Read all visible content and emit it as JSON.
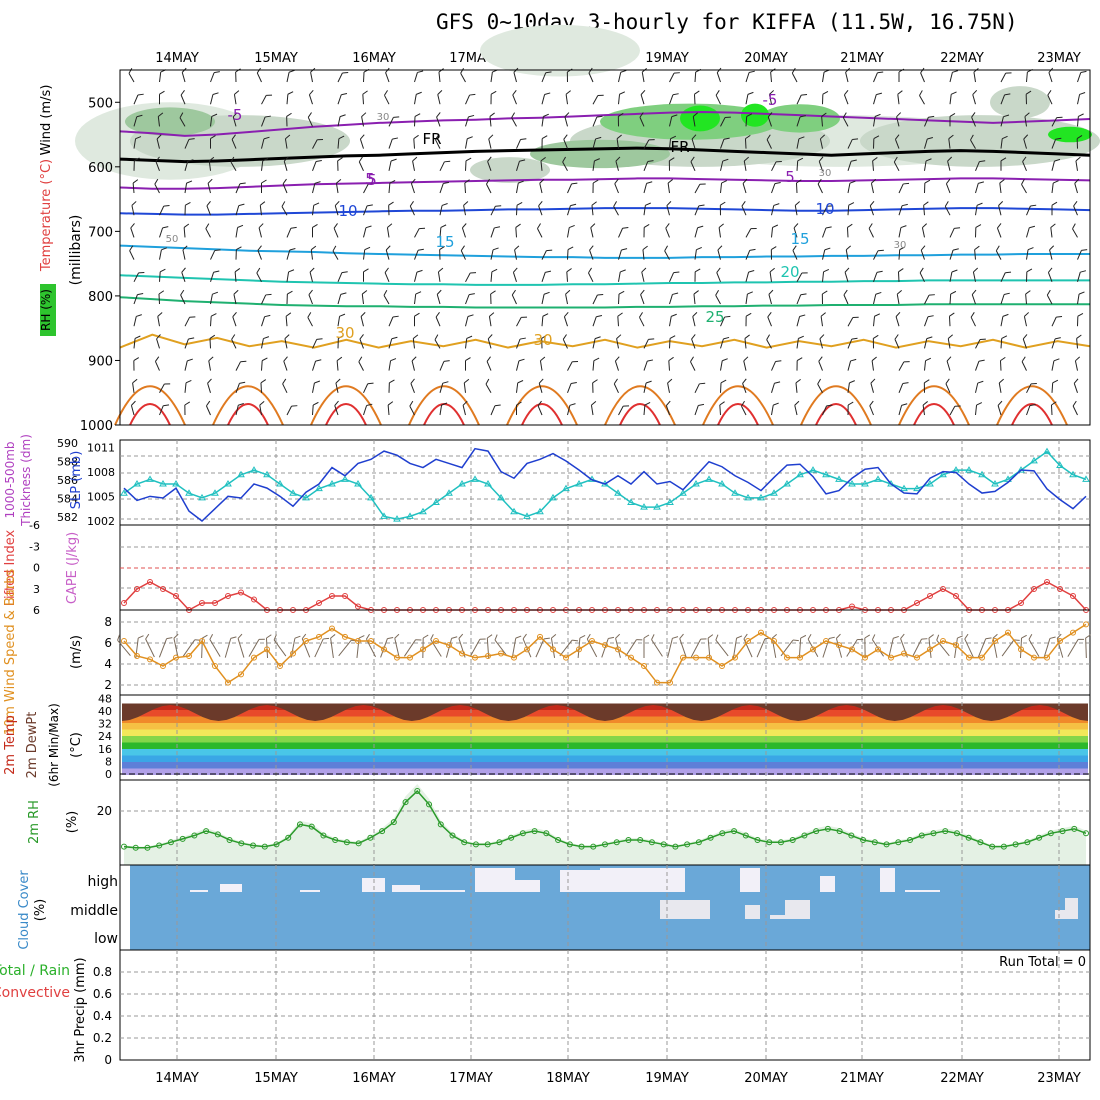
{
  "title": "GFS 0~10day 3-hourly for KIFFA (11.5W, 16.75N)",
  "chart_data": [
    {
      "type": "line",
      "panel": "upper-air",
      "date_ticks": [
        "14MAY",
        "15MAY",
        "16MAY",
        "17MAY",
        "18MAY",
        "19MAY",
        "20MAY",
        "21MAY",
        "22MAY",
        "23MAY"
      ],
      "ylabels": [
        "Wind (m/s)",
        "Temperature (°C)",
        "RH (%)",
        "(millibars)"
      ],
      "yticks": [
        500,
        600,
        700,
        800,
        900,
        1000
      ],
      "ylim": [
        450,
        1000
      ],
      "axis": "inverted",
      "contour_labels": [
        "-5",
        "-5",
        "5",
        "5",
        "5",
        "10",
        "10",
        "15",
        "15",
        "20",
        "25",
        "30",
        "30",
        "FR",
        "FR",
        "30",
        "30",
        "50",
        "30"
      ],
      "isotherms": [
        {
          "label": "-5",
          "color": "#8a1fb0",
          "pressures": [
            545,
            548,
            552,
            550,
            546,
            542,
            538,
            535,
            532,
            530,
            528,
            527,
            525,
            524,
            522,
            520,
            518,
            516,
            515,
            516,
            518,
            520,
            522,
            524,
            526,
            528,
            530,
            532,
            530,
            528,
            526
          ]
        },
        {
          "label": "0",
          "color": "#000000",
          "pressures": [
            588,
            590,
            592,
            591,
            589,
            587,
            585,
            583,
            582,
            580,
            578,
            576,
            575,
            574,
            573,
            572,
            571,
            572,
            574,
            576,
            578,
            580,
            582,
            580,
            578,
            576,
            575,
            576,
            578,
            580,
            582
          ]
        },
        {
          "label": "5",
          "color": "#8a1fb0",
          "pressures": [
            632,
            634,
            634,
            633,
            631,
            629,
            627,
            626,
            625,
            624,
            623,
            622,
            621,
            620,
            620,
            619,
            618,
            618,
            619,
            620,
            621,
            622,
            622,
            621,
            620,
            619,
            618,
            618,
            619,
            620,
            621
          ]
        },
        {
          "label": "10",
          "color": "#1f47d6",
          "pressures": [
            672,
            673,
            674,
            674,
            673,
            672,
            671,
            670,
            669,
            668,
            668,
            667,
            666,
            666,
            665,
            664,
            664,
            664,
            665,
            666,
            667,
            668,
            668,
            667,
            666,
            665,
            664,
            664,
            665,
            666,
            667
          ]
        },
        {
          "label": "15",
          "color": "#1fa0dc",
          "pressures": [
            722,
            724,
            726,
            728,
            730,
            731,
            732,
            734,
            735,
            736,
            737,
            738,
            739,
            740,
            740,
            741,
            741,
            741,
            740,
            740,
            739,
            739,
            738,
            738,
            737,
            737,
            736,
            736,
            735,
            735,
            735
          ]
        },
        {
          "label": "20",
          "color": "#1fc4b0",
          "pressures": [
            768,
            770,
            772,
            774,
            776,
            778,
            779,
            780,
            781,
            782,
            782,
            783,
            783,
            783,
            782,
            782,
            781,
            780,
            780,
            779,
            779,
            778,
            778,
            777,
            777,
            776,
            776,
            776,
            776,
            776,
            776
          ]
        },
        {
          "label": "25",
          "color": "#1fb070",
          "pressures": [
            802,
            805,
            808,
            810,
            812,
            814,
            815,
            816,
            816,
            817,
            817,
            818,
            818,
            818,
            818,
            818,
            817,
            817,
            816,
            816,
            815,
            815,
            814,
            814,
            814,
            813,
            813,
            813,
            813,
            813,
            813
          ]
        },
        {
          "label": "30",
          "color": "#e0a020",
          "pressures": [
            880,
            860,
            875,
            865,
            878,
            870,
            880,
            868,
            880,
            870,
            878,
            868,
            880,
            870,
            878,
            868,
            880,
            870,
            878,
            868,
            880,
            870,
            878,
            868,
            880,
            870,
            878,
            868,
            880,
            870,
            878
          ]
        }
      ]
    },
    {
      "type": "line",
      "panel": "thickness-slp",
      "ylabels": [
        "1000-500mb Thickness (dm)",
        "SLP (mb)"
      ],
      "yticks_left": [
        582,
        584,
        586,
        588,
        590
      ],
      "yticks_right": [
        1002,
        1005,
        1008,
        1011
      ],
      "series": [
        {
          "name": "SLP (mb)",
          "axis": "right",
          "color": "#1f3fcf",
          "values": [
            1006,
            1004.5,
            1005,
            1004.8,
            1006,
            1003.2,
            1002,
            1003.5,
            1005,
            1004.8,
            1006.5,
            1006,
            1005,
            1003.8,
            1005.5,
            1006.5,
            1008.5,
            1007.5,
            1009,
            1009.5,
            1010.5,
            1010,
            1009,
            1008.5,
            1009.5,
            1009,
            1008.5,
            1010.8,
            1010.5,
            1008,
            1007.2,
            1009,
            1009.5,
            1010.2,
            1009.3,
            1008.2,
            1007,
            1006.5,
            1007.5,
            1006.5,
            1008,
            1006.5,
            1006.8,
            1005.8,
            1007.5,
            1009.2,
            1008.6,
            1007.5,
            1006.7,
            1005.7,
            1007.3,
            1008.8,
            1008.9,
            1007.4,
            1005.3,
            1005.7,
            1007.2,
            1008.3,
            1008.5,
            1006.5,
            1005.4,
            1005.3,
            1007.2,
            1008,
            1007.9,
            1006.5,
            1005.4,
            1005.6,
            1006.7,
            1008.2,
            1008.1,
            1005.9,
            1004.6,
            1003.5,
            1005
          ]
        },
        {
          "name": "1000-500mb Thickness (dm)",
          "axis": "left",
          "color": "#20c0c0",
          "values": [
            585,
            586,
            586.5,
            586,
            586,
            585,
            584.5,
            585,
            586,
            587,
            587.5,
            587,
            586,
            585,
            584.5,
            585.5,
            586,
            586.5,
            586,
            584.5,
            582.5,
            582.2,
            582.5,
            583,
            584,
            585,
            586,
            586.5,
            586,
            584.5,
            583,
            582.5,
            583,
            584.5,
            585.5,
            586,
            586.5,
            586,
            585,
            584,
            583.5,
            583.5,
            584,
            585,
            586,
            586.5,
            586,
            585,
            584.5,
            584.5,
            585,
            586,
            587,
            587.5,
            587,
            586.5,
            586,
            586,
            586.5,
            586,
            585.5,
            585.5,
            586,
            587,
            587.5,
            587.5,
            587,
            586,
            586.5,
            587.5,
            588.5,
            589.5,
            588,
            587,
            586.5
          ]
        }
      ]
    },
    {
      "type": "line",
      "panel": "lifted-index-cape",
      "ylabels": [
        "Lifted Index",
        "CAPE (J/kg)"
      ],
      "yticks": [
        6,
        3,
        0,
        -3,
        -6
      ],
      "series": [
        {
          "name": "Lifted Index",
          "color": "#e04040",
          "values": [
            5,
            3,
            2,
            3,
            4,
            6,
            5,
            5,
            4,
            3.5,
            4.5,
            6,
            6,
            6,
            6,
            5,
            4,
            4,
            5.5,
            6,
            6,
            6,
            6,
            6,
            6,
            6,
            6,
            6,
            6,
            6,
            6,
            6,
            6,
            6,
            6,
            6,
            6,
            6,
            6,
            6,
            6,
            6,
            6,
            6,
            6,
            6,
            6,
            6,
            6,
            6,
            6,
            6,
            6,
            6,
            6,
            6,
            5.5,
            6,
            6,
            6,
            6,
            5,
            4,
            3,
            4,
            6,
            6,
            6,
            6,
            5,
            3,
            2,
            3,
            4,
            6
          ]
        }
      ]
    },
    {
      "type": "line",
      "panel": "10m-wind",
      "ylabels": [
        "10m Wind Speed & Barbs",
        "(m/s)"
      ],
      "yticks": [
        2,
        4,
        6,
        8
      ],
      "series": [
        {
          "name": "10m Wind Speed",
          "color": "#e09020",
          "values": [
            6,
            4.2,
            3.8,
            3,
            4,
            4.2,
            6,
            3,
            1,
            2,
            4,
            5,
            3,
            4.5,
            6,
            6.5,
            7.5,
            6.5,
            6,
            6,
            5,
            4,
            4,
            5,
            6,
            5.5,
            4.5,
            4,
            4.2,
            4.5,
            4,
            5,
            6.5,
            5,
            4,
            5,
            6,
            5.5,
            5,
            4,
            3,
            1,
            1,
            4,
            4,
            4,
            3,
            4,
            6,
            7,
            6,
            4,
            4,
            5,
            6,
            5.5,
            5,
            4,
            5,
            4,
            4.5,
            4,
            5,
            6,
            5.5,
            4,
            4,
            6,
            7,
            5,
            4,
            4,
            6,
            7,
            8
          ]
        }
      ]
    },
    {
      "type": "area",
      "panel": "2m-temp",
      "ylabels": [
        "2m Temp",
        "2m DewPt",
        "(6hr Min/Max)",
        "(°C)"
      ],
      "yticks": [
        0,
        8,
        16,
        24,
        32,
        40,
        48
      ]
    },
    {
      "type": "area",
      "panel": "2m-rh",
      "ylabels": [
        "2m RH",
        "(%)"
      ],
      "yticks": [
        20
      ],
      "series": [
        {
          "name": "2m RH",
          "color": "#2a9a2a",
          "values": [
            6,
            5.5,
            5.5,
            6.5,
            8,
            9.5,
            11,
            13,
            11.5,
            9,
            7.5,
            6.5,
            6,
            7,
            10,
            16,
            15,
            11,
            9,
            8,
            7.5,
            10,
            13,
            17,
            26,
            31,
            25,
            16,
            11,
            8,
            7,
            7,
            8,
            10,
            12,
            13,
            12,
            9,
            7,
            6,
            6,
            7,
            8,
            9,
            9,
            8,
            7,
            6,
            7,
            8,
            10,
            12,
            13,
            11,
            9,
            8,
            8,
            9,
            11,
            13,
            14,
            13,
            11,
            9,
            8,
            7,
            8,
            9,
            11,
            12,
            13,
            12,
            10,
            8,
            6,
            6,
            7,
            8,
            10,
            12,
            13,
            14,
            12
          ]
        }
      ]
    },
    {
      "type": "bar",
      "panel": "cloud-cover",
      "ylabels": [
        "Cloud Cover",
        "(%)"
      ],
      "levels": [
        "high",
        "middle",
        "low"
      ]
    },
    {
      "type": "bar",
      "panel": "precip",
      "ylabels": [
        "Total / Rain",
        "Convective",
        "3hr Precip (mm)"
      ],
      "yticks": [
        0,
        0.2,
        0.4,
        0.6,
        0.8
      ],
      "annotation": "Run Total = 0"
    }
  ]
}
